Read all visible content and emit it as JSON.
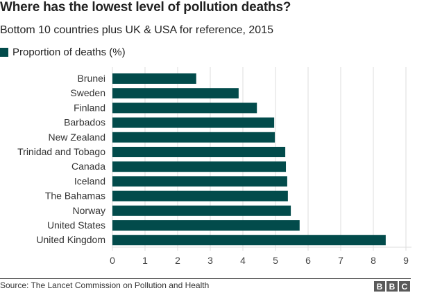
{
  "chart_data": {
    "type": "bar",
    "orientation": "horizontal",
    "title": "Where has the lowest level of pollution deaths?",
    "subtitle": "Bottom 10 countries plus UK & USA for reference, 2015",
    "categories": [
      "Brunei",
      "Sweden",
      "Finland",
      "Barbados",
      "New Zealand",
      "Trinidad and Tobago",
      "Canada",
      "Iceland",
      "The Bahamas",
      "Norway",
      "United States",
      "United Kingdom"
    ],
    "series": [
      {
        "name": "Proportion of deaths (%)",
        "color": "#024b4b",
        "values": [
          2.57,
          3.87,
          4.43,
          4.96,
          4.98,
          5.3,
          5.32,
          5.36,
          5.38,
          5.47,
          5.74,
          8.38
        ]
      }
    ],
    "xlabel": "",
    "ylabel": "",
    "xlim": [
      0,
      9
    ],
    "xticks": [
      "0",
      "1",
      "2",
      "3",
      "4",
      "5",
      "6",
      "7",
      "8",
      "9"
    ],
    "grid": true,
    "legend": "top-left"
  },
  "footer": {
    "source": "Source: The Lancet Commission on Pollution and Health",
    "logo": [
      "B",
      "B",
      "C"
    ]
  }
}
